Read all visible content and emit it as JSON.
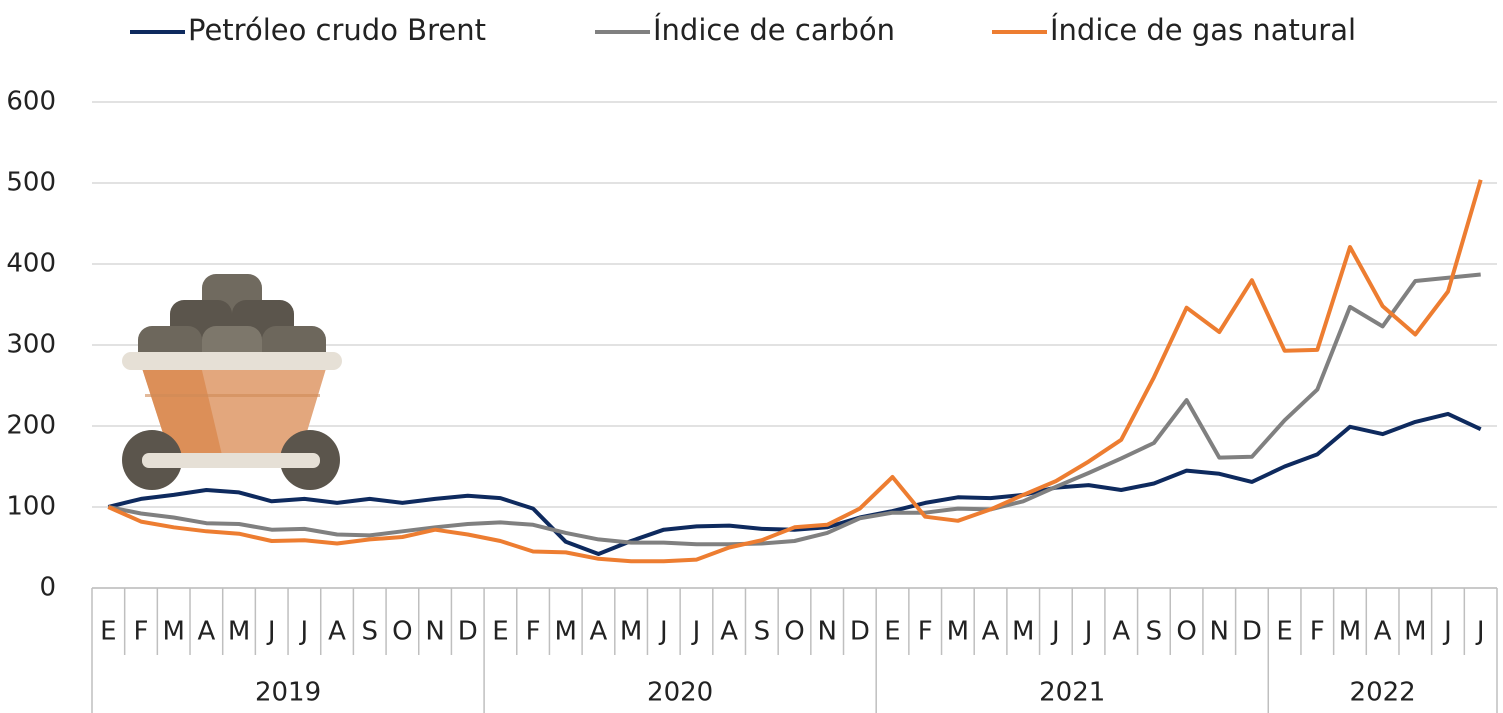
{
  "chart_data": {
    "type": "line",
    "categories": [
      "E",
      "F",
      "M",
      "A",
      "M",
      "J",
      "J",
      "A",
      "S",
      "O",
      "N",
      "D",
      "E",
      "F",
      "M",
      "A",
      "M",
      "J",
      "J",
      "A",
      "S",
      "O",
      "N",
      "D",
      "E",
      "F",
      "M",
      "A",
      "M",
      "J",
      "J",
      "A",
      "S",
      "O",
      "N",
      "D",
      "E",
      "F",
      "M",
      "A",
      "M",
      "J",
      "J"
    ],
    "year_labels": [
      "2019",
      "2020",
      "2021",
      "2022"
    ],
    "year_spans": [
      12,
      12,
      12,
      7
    ],
    "series": [
      {
        "name": "Petróleo crudo Brent",
        "color": "#0e2a5e",
        "values": [
          100,
          110,
          115,
          121,
          118,
          107,
          110,
          105,
          110,
          105,
          110,
          114,
          111,
          98,
          57,
          42,
          58,
          72,
          76,
          77,
          73,
          72,
          75,
          87,
          95,
          105,
          112,
          111,
          115,
          124,
          127,
          121,
          129,
          145,
          141,
          131,
          150,
          165,
          199,
          190,
          205,
          215,
          196
        ]
      },
      {
        "name": "Índice de carbón",
        "color": "#808080",
        "values": [
          100,
          92,
          87,
          80,
          79,
          72,
          73,
          66,
          65,
          70,
          75,
          79,
          81,
          78,
          68,
          60,
          56,
          56,
          54,
          54,
          55,
          58,
          68,
          86,
          93,
          93,
          98,
          97,
          107,
          125,
          142,
          160,
          179,
          232,
          161,
          162,
          207,
          245,
          347,
          323,
          379,
          383,
          387
        ]
      },
      {
        "name": "Índice de gas natural",
        "color": "#ed7d31",
        "values": [
          100,
          82,
          75,
          70,
          67,
          58,
          59,
          55,
          60,
          63,
          72,
          66,
          58,
          45,
          44,
          36,
          33,
          33,
          35,
          50,
          59,
          75,
          78,
          98,
          137,
          88,
          83,
          97,
          115,
          132,
          156,
          183,
          260,
          346,
          316,
          380,
          293,
          294,
          421,
          348,
          313,
          366,
          504
        ]
      }
    ],
    "ylim": [
      0,
      600
    ],
    "yticks": [
      0,
      100,
      200,
      300,
      400,
      500,
      600
    ],
    "grid": true
  }
}
